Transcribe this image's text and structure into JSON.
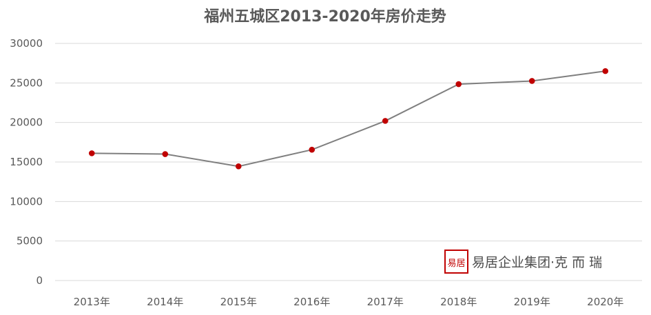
{
  "chart_data": {
    "type": "line",
    "title": "福州五城区2013-2020年房价走势",
    "xlabel": "",
    "ylabel": "",
    "categories": [
      "2013年",
      "2014年",
      "2015年",
      "2016年",
      "2017年",
      "2018年",
      "2019年",
      "2020年"
    ],
    "series": [
      {
        "values": [
          16100,
          16000,
          14450,
          16550,
          20200,
          24850,
          25250,
          26500
        ]
      }
    ],
    "ylim": [
      0,
      30000
    ],
    "yticks": [
      0,
      5000,
      10000,
      15000,
      20000,
      25000,
      30000
    ],
    "grid": "horizontal",
    "legend": "none",
    "colors": {
      "line": "#7f7f7f",
      "marker": "#c00000",
      "grid": "#d9d9d9",
      "text": "#595959"
    }
  },
  "watermark": {
    "logo_text": "易居",
    "text": "易居企业集团·克 而 瑞",
    "color": "#c00000"
  }
}
